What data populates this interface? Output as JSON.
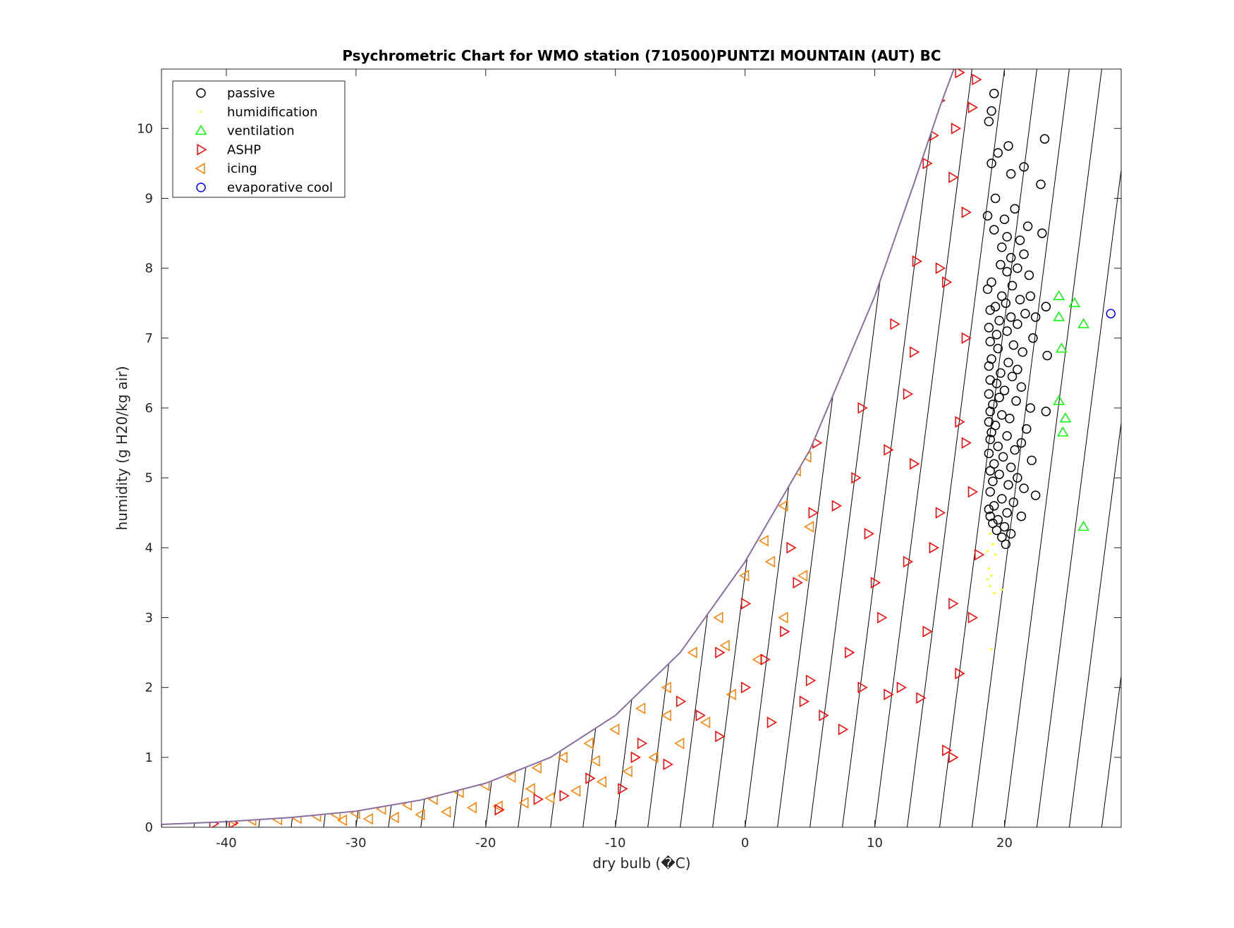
{
  "chart_data": {
    "type": "scatter",
    "title": "Psychrometric Chart for WMO station (710500)PUNTZI MOUNTAIN (AUT)  BC",
    "xlabel": "dry bulb (�C)",
    "ylabel": "humidity (g H20/kg air)",
    "xlim": [
      -45,
      29
    ],
    "ylim": [
      0,
      10.85
    ],
    "x_ticks": [
      -40,
      -30,
      -20,
      -10,
      0,
      10,
      20
    ],
    "y_ticks": [
      0,
      1,
      2,
      3,
      4,
      5,
      6,
      7,
      8,
      9,
      10
    ],
    "grid": false,
    "legend_position": "top-left",
    "saturation_curve": {
      "x": [
        -45,
        -40,
        -35,
        -30,
        -25,
        -20,
        -15,
        -10,
        -5,
        0,
        5,
        10,
        13,
        15,
        16.1
      ],
      "y": [
        0.04,
        0.08,
        0.14,
        0.23,
        0.39,
        0.63,
        1.0,
        1.6,
        2.5,
        3.8,
        5.4,
        7.6,
        9.2,
        10.3,
        10.85
      ]
    },
    "series": [
      {
        "name": "passive",
        "marker": "circle",
        "color": "#000000",
        "points": [
          [
            19.2,
            10.5
          ],
          [
            19.0,
            10.25
          ],
          [
            18.8,
            10.1
          ],
          [
            23.1,
            9.85
          ],
          [
            19.5,
            9.65
          ],
          [
            20.3,
            9.75
          ],
          [
            19.0,
            9.5
          ],
          [
            21.5,
            9.45
          ],
          [
            20.5,
            9.35
          ],
          [
            22.8,
            9.2
          ],
          [
            19.3,
            9.0
          ],
          [
            20.8,
            8.85
          ],
          [
            18.7,
            8.75
          ],
          [
            20.0,
            8.7
          ],
          [
            21.8,
            8.6
          ],
          [
            19.2,
            8.55
          ],
          [
            22.9,
            8.5
          ],
          [
            20.2,
            8.45
          ],
          [
            21.2,
            8.4
          ],
          [
            19.8,
            8.3
          ],
          [
            21.5,
            8.2
          ],
          [
            20.5,
            8.15
          ],
          [
            19.7,
            8.05
          ],
          [
            21.0,
            8.0
          ],
          [
            20.2,
            7.95
          ],
          [
            21.9,
            7.9
          ],
          [
            19.0,
            7.8
          ],
          [
            20.6,
            7.75
          ],
          [
            18.7,
            7.7
          ],
          [
            22.0,
            7.6
          ],
          [
            19.8,
            7.6
          ],
          [
            21.2,
            7.55
          ],
          [
            20.1,
            7.5
          ],
          [
            19.3,
            7.45
          ],
          [
            23.2,
            7.45
          ],
          [
            18.9,
            7.4
          ],
          [
            21.6,
            7.35
          ],
          [
            20.5,
            7.3
          ],
          [
            22.4,
            7.3
          ],
          [
            19.6,
            7.25
          ],
          [
            21.0,
            7.2
          ],
          [
            18.8,
            7.15
          ],
          [
            20.2,
            7.1
          ],
          [
            19.4,
            7.05
          ],
          [
            22.2,
            7.0
          ],
          [
            18.9,
            6.95
          ],
          [
            20.7,
            6.9
          ],
          [
            19.5,
            6.85
          ],
          [
            21.4,
            6.8
          ],
          [
            23.3,
            6.75
          ],
          [
            19.0,
            6.7
          ],
          [
            20.3,
            6.65
          ],
          [
            18.8,
            6.6
          ],
          [
            21.0,
            6.55
          ],
          [
            19.7,
            6.5
          ],
          [
            20.6,
            6.45
          ],
          [
            18.9,
            6.4
          ],
          [
            19.4,
            6.35
          ],
          [
            21.3,
            6.3
          ],
          [
            20.0,
            6.25
          ],
          [
            18.8,
            6.2
          ],
          [
            19.6,
            6.15
          ],
          [
            20.9,
            6.1
          ],
          [
            19.1,
            6.05
          ],
          [
            22.0,
            6.0
          ],
          [
            18.9,
            5.95
          ],
          [
            19.8,
            5.9
          ],
          [
            23.2,
            5.95
          ],
          [
            20.4,
            5.85
          ],
          [
            18.8,
            5.8
          ],
          [
            19.3,
            5.75
          ],
          [
            21.7,
            5.7
          ],
          [
            19.0,
            5.65
          ],
          [
            20.2,
            5.6
          ],
          [
            18.9,
            5.55
          ],
          [
            21.3,
            5.5
          ],
          [
            19.5,
            5.45
          ],
          [
            20.8,
            5.4
          ],
          [
            18.8,
            5.35
          ],
          [
            19.9,
            5.3
          ],
          [
            22.1,
            5.25
          ],
          [
            19.2,
            5.2
          ],
          [
            20.5,
            5.15
          ],
          [
            18.9,
            5.1
          ],
          [
            19.6,
            5.05
          ],
          [
            21.0,
            5.0
          ],
          [
            19.1,
            4.95
          ],
          [
            20.3,
            4.9
          ],
          [
            21.5,
            4.85
          ],
          [
            22.4,
            4.75
          ],
          [
            18.9,
            4.8
          ],
          [
            19.8,
            4.7
          ],
          [
            20.7,
            4.65
          ],
          [
            19.2,
            4.6
          ],
          [
            18.8,
            4.55
          ],
          [
            20.2,
            4.5
          ],
          [
            19.5,
            4.4
          ],
          [
            21.3,
            4.45
          ],
          [
            20.0,
            4.3
          ],
          [
            19.1,
            4.35
          ],
          [
            20.5,
            4.2
          ],
          [
            19.8,
            4.15
          ],
          [
            20.1,
            4.05
          ],
          [
            18.9,
            4.45
          ],
          [
            19.4,
            4.25
          ]
        ]
      },
      {
        "name": "humidification",
        "marker": "dot",
        "color": "#ffff00",
        "points": [
          [
            18.9,
            4.2
          ],
          [
            19.1,
            4.05
          ],
          [
            18.7,
            3.95
          ],
          [
            19.3,
            3.9
          ],
          [
            18.8,
            3.7
          ],
          [
            19.0,
            3.6
          ],
          [
            18.9,
            3.45
          ],
          [
            19.2,
            3.35
          ],
          [
            19.8,
            3.4
          ],
          [
            18.7,
            3.55
          ],
          [
            19.0,
            2.55
          ]
        ]
      },
      {
        "name": "ventilation",
        "marker": "triangle-up",
        "color": "#00ff00",
        "points": [
          [
            24.2,
            7.6
          ],
          [
            25.4,
            7.5
          ],
          [
            24.2,
            7.3
          ],
          [
            26.1,
            7.2
          ],
          [
            24.4,
            6.85
          ],
          [
            24.2,
            6.1
          ],
          [
            24.7,
            5.85
          ],
          [
            24.5,
            5.65
          ],
          [
            26.1,
            4.3
          ]
        ]
      },
      {
        "name": "ASHP",
        "marker": "triangle-right",
        "color": "#ff0000",
        "points": [
          [
            -41,
            0.05
          ],
          [
            -39.5,
            0.06
          ],
          [
            15.5,
            10.75
          ],
          [
            16.5,
            10.8
          ],
          [
            17.8,
            10.7
          ],
          [
            15.0,
            10.4
          ],
          [
            17.5,
            10.3
          ],
          [
            13.8,
            10.2
          ],
          [
            16.2,
            10.0
          ],
          [
            14.5,
            9.9
          ],
          [
            12.0,
            9.4
          ],
          [
            14.0,
            9.5
          ],
          [
            16.0,
            9.3
          ],
          [
            10.0,
            8.3
          ],
          [
            13.2,
            8.1
          ],
          [
            15.0,
            8.0
          ],
          [
            8.0,
            7.5
          ],
          [
            11.5,
            7.2
          ],
          [
            17.0,
            7.0
          ],
          [
            6.5,
            6.4
          ],
          [
            9.0,
            6.0
          ],
          [
            12.5,
            6.2
          ],
          [
            16.5,
            5.8
          ],
          [
            5.5,
            5.5
          ],
          [
            8.5,
            5.0
          ],
          [
            13.0,
            5.2
          ],
          [
            17.5,
            4.8
          ],
          [
            5.2,
            4.5
          ],
          [
            9.5,
            4.2
          ],
          [
            14.5,
            4.0
          ],
          [
            0.0,
            3.2
          ],
          [
            4.0,
            3.5
          ],
          [
            10.0,
            3.5
          ],
          [
            16.0,
            3.2
          ],
          [
            -2.0,
            2.5
          ],
          [
            3.0,
            2.8
          ],
          [
            8.0,
            2.5
          ],
          [
            14.0,
            2.8
          ],
          [
            -5.0,
            1.8
          ],
          [
            0.0,
            2.0
          ],
          [
            5.0,
            2.1
          ],
          [
            12.0,
            2.0
          ],
          [
            13.5,
            1.85
          ],
          [
            -8.0,
            1.2
          ],
          [
            -2.0,
            1.3
          ],
          [
            2.0,
            1.5
          ],
          [
            6.0,
            1.6
          ],
          [
            15.5,
            1.1
          ],
          [
            16.0,
            1.0
          ],
          [
            -12.0,
            0.7
          ],
          [
            -9.5,
            0.55
          ],
          [
            -6.0,
            0.9
          ],
          [
            -16.0,
            0.4
          ],
          [
            -19.0,
            0.25
          ],
          [
            -14.0,
            0.45
          ],
          [
            18.0,
            3.9
          ],
          [
            17.5,
            3.0
          ],
          [
            16.5,
            2.2
          ],
          [
            11.0,
            1.9
          ],
          [
            7.5,
            1.4
          ],
          [
            1.5,
            2.4
          ],
          [
            -3.5,
            1.6
          ],
          [
            -8.5,
            1.0
          ],
          [
            3.5,
            4.0
          ],
          [
            7.0,
            4.6
          ],
          [
            11.0,
            5.4
          ],
          [
            13.0,
            6.8
          ],
          [
            15.5,
            7.8
          ],
          [
            17.0,
            8.8
          ],
          [
            10.5,
            3.0
          ],
          [
            12.5,
            3.8
          ],
          [
            17.0,
            5.5
          ],
          [
            15.0,
            4.5
          ],
          [
            9.0,
            2.0
          ],
          [
            4.5,
            1.8
          ]
        ]
      },
      {
        "name": "icing",
        "marker": "triangle-left",
        "color": "#ff8000",
        "points": [
          [
            -39.5,
            0.1
          ],
          [
            -38,
            0.1
          ],
          [
            -36,
            0.11
          ],
          [
            -34.5,
            0.13
          ],
          [
            -33,
            0.16
          ],
          [
            -31.5,
            0.18
          ],
          [
            -30,
            0.2
          ],
          [
            -28,
            0.26
          ],
          [
            -26,
            0.32
          ],
          [
            -24,
            0.4
          ],
          [
            -22,
            0.5
          ],
          [
            -20,
            0.6
          ],
          [
            -18,
            0.72
          ],
          [
            -16,
            0.85
          ],
          [
            -14,
            1.0
          ],
          [
            -12,
            1.2
          ],
          [
            -10,
            1.4
          ],
          [
            -8,
            1.7
          ],
          [
            -6,
            2.0
          ],
          [
            -4,
            2.5
          ],
          [
            -2,
            3.0
          ],
          [
            0,
            3.6
          ],
          [
            1.5,
            4.1
          ],
          [
            3,
            4.6
          ],
          [
            4,
            5.1
          ],
          [
            5,
            5.6
          ],
          [
            4.8,
            5.3
          ],
          [
            5.0,
            4.3
          ],
          [
            4.5,
            3.6
          ],
          [
            3.0,
            3.0
          ],
          [
            1.0,
            2.4
          ],
          [
            -1.0,
            1.9
          ],
          [
            -3.0,
            1.5
          ],
          [
            -5.0,
            1.2
          ],
          [
            -7.0,
            1.0
          ],
          [
            -9.0,
            0.8
          ],
          [
            -11.0,
            0.65
          ],
          [
            -13.0,
            0.52
          ],
          [
            -15.0,
            0.42
          ],
          [
            -17.0,
            0.35
          ],
          [
            -19.0,
            0.3
          ],
          [
            -21.0,
            0.28
          ],
          [
            -23.0,
            0.22
          ],
          [
            -25.0,
            0.18
          ],
          [
            -27.0,
            0.14
          ],
          [
            -29.0,
            0.12
          ],
          [
            -31.0,
            0.1
          ],
          [
            2.0,
            3.8
          ],
          [
            -1.5,
            2.6
          ],
          [
            -6.0,
            1.6
          ],
          [
            -11.5,
            0.95
          ],
          [
            -16.5,
            0.55
          ]
        ]
      },
      {
        "name": "evaporative cool",
        "marker": "circle",
        "color": "#0000ff",
        "points": [
          [
            28.2,
            7.35
          ]
        ]
      }
    ]
  }
}
